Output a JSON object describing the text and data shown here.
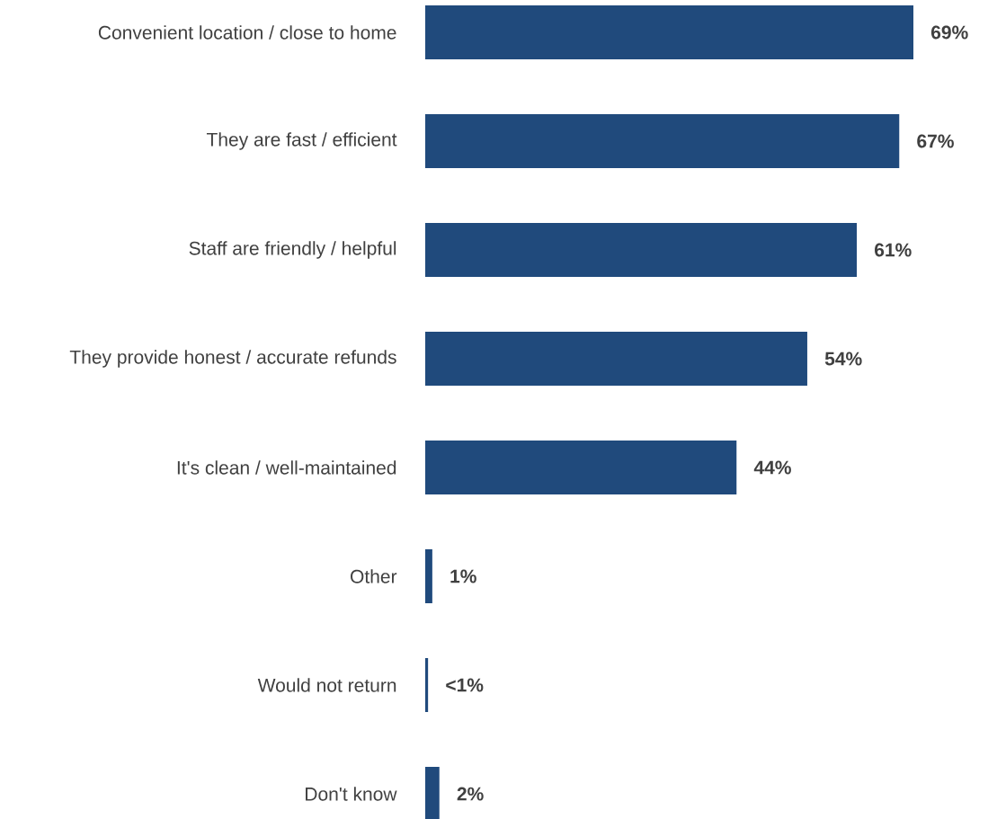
{
  "chart_data": {
    "type": "bar",
    "orientation": "horizontal",
    "color": "#204a7c",
    "categories": [
      "Convenient location / close to home",
      "They are fast / efficient",
      "Staff are friendly / helpful",
      "They provide honest / accurate refunds",
      "It's clean / well-maintained",
      "Other",
      "Would not return",
      "Don't know"
    ],
    "values": [
      69,
      67,
      61,
      54,
      44,
      1,
      0.4,
      2
    ],
    "value_labels": [
      "69%",
      "67%",
      "61%",
      "54%",
      "44%",
      "1%",
      "<1%",
      "2%"
    ]
  }
}
